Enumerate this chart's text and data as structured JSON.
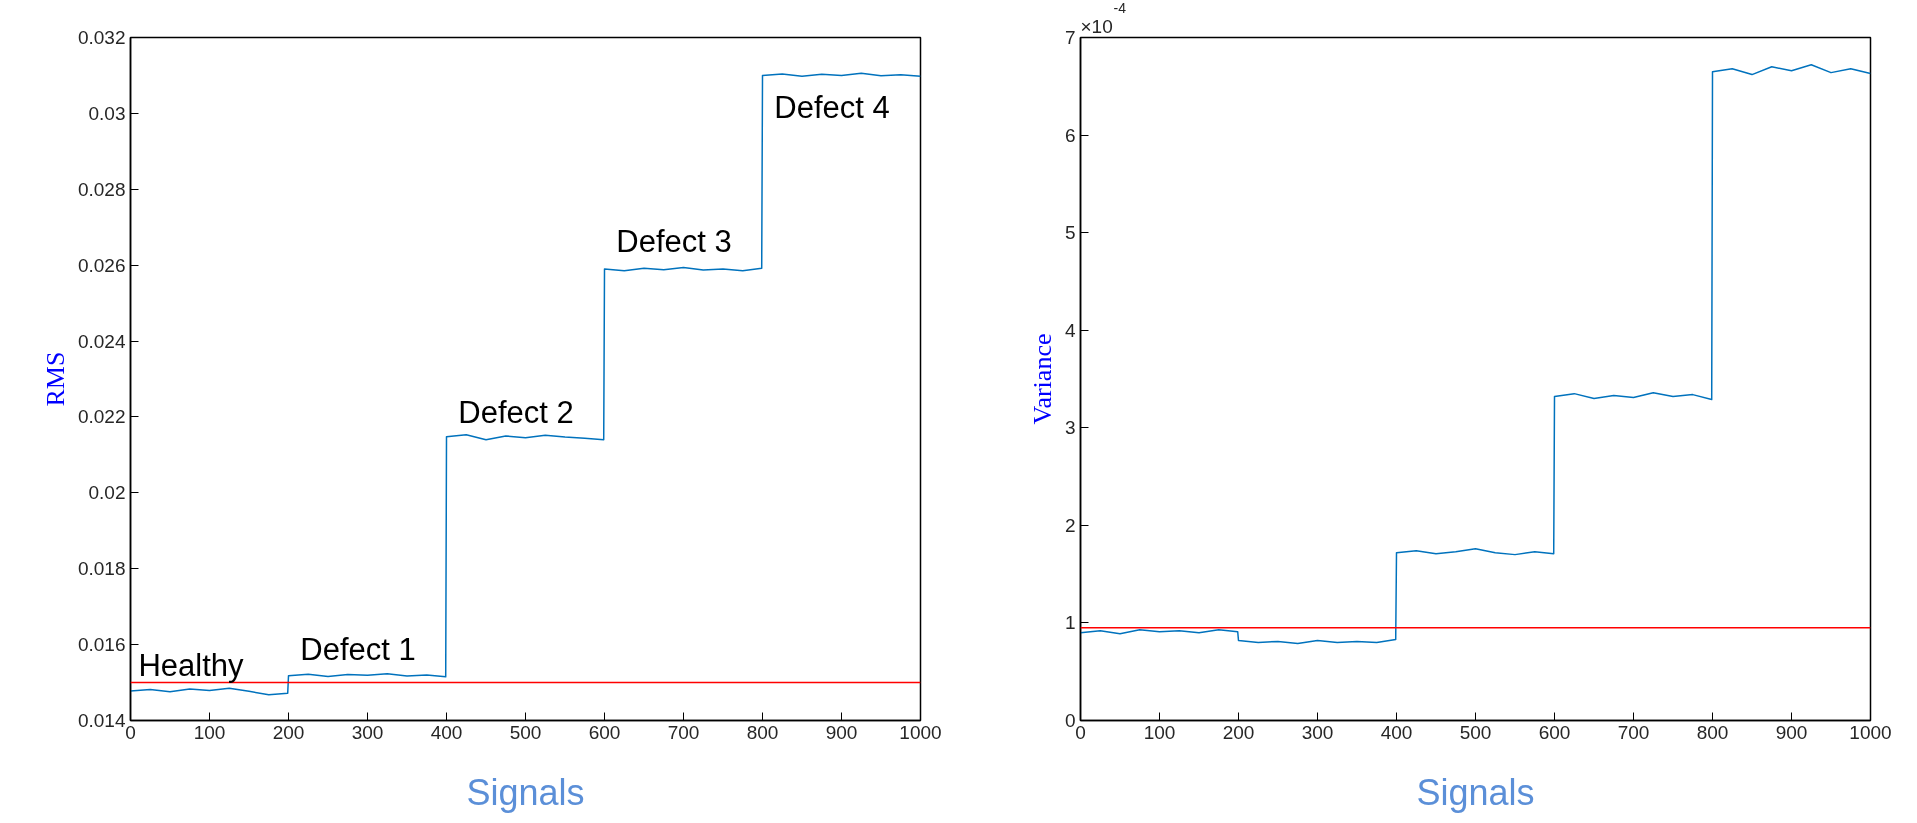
{
  "chart_data": [
    {
      "type": "line",
      "xlabel": "Signals",
      "ylabel": "RMS",
      "grid": false,
      "line_style": "solid",
      "marker": "none",
      "xlim": [
        0,
        1000
      ],
      "xticks": [
        0,
        100,
        200,
        300,
        400,
        500,
        600,
        700,
        800,
        900,
        1000
      ],
      "ylim": [
        0.014,
        0.032
      ],
      "yticks": [
        0.014,
        0.016,
        0.018,
        0.02,
        0.022,
        0.024,
        0.026,
        0.028,
        0.03,
        0.032
      ],
      "x": [
        0,
        25,
        50,
        75,
        100,
        125,
        150,
        175,
        199,
        200,
        225,
        250,
        275,
        300,
        325,
        350,
        375,
        399,
        400,
        425,
        450,
        475,
        500,
        525,
        550,
        575,
        599,
        600,
        625,
        650,
        675,
        700,
        725,
        750,
        775,
        799,
        800,
        825,
        850,
        875,
        900,
        925,
        950,
        975,
        1000
      ],
      "series": [
        {
          "color": "#0072bd",
          "values": [
            0.01478,
            0.01482,
            0.01476,
            0.01483,
            0.01479,
            0.01485,
            0.01477,
            0.01468,
            0.01472,
            0.01518,
            0.01522,
            0.01516,
            0.01521,
            0.01519,
            0.01523,
            0.01517,
            0.0152,
            0.01515,
            0.02148,
            0.02153,
            0.0214,
            0.0215,
            0.02145,
            0.02152,
            0.02147,
            0.02144,
            0.0214,
            0.0259,
            0.02585,
            0.02592,
            0.02588,
            0.02594,
            0.02587,
            0.0259,
            0.02585,
            0.02592,
            0.031,
            0.03104,
            0.03098,
            0.03103,
            0.031,
            0.03106,
            0.03099,
            0.03102,
            0.03098
          ]
        }
      ],
      "ref_lines": [
        {
          "axis": "y",
          "value": 0.015,
          "color": "#ff0000"
        }
      ],
      "annotations": [
        "Healthy",
        "Defect 1",
        "Defect 2",
        "Defect 3",
        "Defect 4"
      ]
    },
    {
      "type": "line",
      "xlabel": "Signals",
      "ylabel": "Variance",
      "grid": false,
      "line_style": "solid",
      "marker": "none",
      "xlim": [
        0,
        1000
      ],
      "xticks": [
        0,
        100,
        200,
        300,
        400,
        500,
        600,
        700,
        800,
        900,
        1000
      ],
      "ylim": [
        0,
        7
      ],
      "yticks": [
        0,
        1,
        2,
        3,
        4,
        5,
        6,
        7
      ],
      "x": [
        0,
        25,
        50,
        75,
        100,
        125,
        150,
        175,
        199,
        200,
        225,
        250,
        275,
        300,
        325,
        350,
        375,
        399,
        400,
        425,
        450,
        475,
        500,
        525,
        550,
        575,
        599,
        600,
        625,
        650,
        675,
        700,
        725,
        750,
        775,
        799,
        800,
        825,
        850,
        875,
        900,
        925,
        950,
        975,
        1000
      ],
      "series": [
        {
          "color": "#0072bd",
          "values": [
            0.9,
            0.92,
            0.89,
            0.93,
            0.91,
            0.92,
            0.9,
            0.93,
            0.91,
            0.82,
            0.8,
            0.81,
            0.79,
            0.82,
            0.8,
            0.81,
            0.8,
            0.83,
            1.72,
            1.74,
            1.71,
            1.73,
            1.76,
            1.72,
            1.7,
            1.73,
            1.71,
            3.32,
            3.35,
            3.3,
            3.33,
            3.31,
            3.36,
            3.32,
            3.34,
            3.29,
            6.65,
            6.68,
            6.62,
            6.7,
            6.66,
            6.72,
            6.64,
            6.68,
            6.63
          ]
        }
      ],
      "ref_lines": [
        {
          "axis": "y",
          "value": 0.95,
          "color": "#ff0000"
        }
      ],
      "annotations": [
        "×10$^{-4}$"
      ]
    }
  ]
}
